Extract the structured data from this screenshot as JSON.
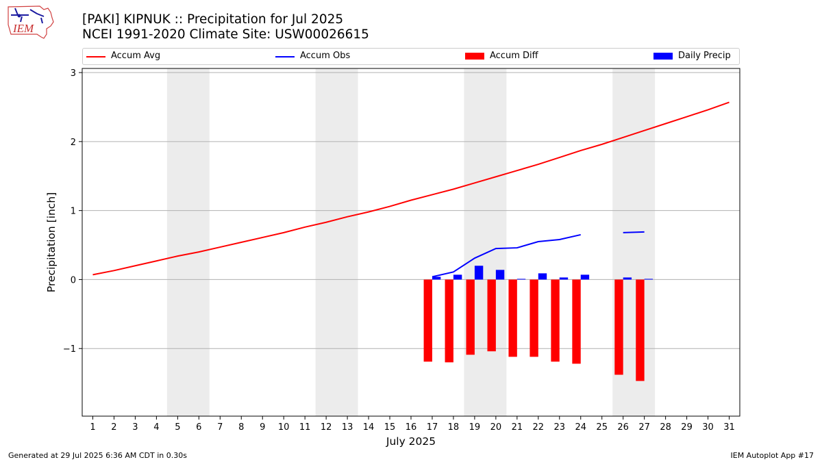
{
  "header": {
    "title_line1": "[PAKI] KIPNUK :: Precipitation for Jul 2025",
    "title_line2": "NCEI 1991-2020 Climate Site: USW00026615",
    "logo_text": "IEM"
  },
  "legend": [
    {
      "label": "Accum Avg",
      "color": "#ff0000",
      "kind": "line"
    },
    {
      "label": "Accum Obs",
      "color": "#0000ff",
      "kind": "line"
    },
    {
      "label": "Accum Diff",
      "color": "#ff0000",
      "kind": "box"
    },
    {
      "label": "Daily Precip",
      "color": "#0000ff",
      "kind": "box"
    }
  ],
  "footer": {
    "left": "Generated at 29 Jul 2025 6:36 AM CDT in 0.30s",
    "right": "IEM Autoplot App #17"
  },
  "chart_data": {
    "type": "bar",
    "xlabel": "July 2025",
    "ylabel": "Precipitation [inch]",
    "xlim": [
      0.5,
      31.5
    ],
    "ylim": [
      -1.98,
      3.06
    ],
    "x_ticks": [
      1,
      2,
      3,
      4,
      5,
      6,
      7,
      8,
      9,
      10,
      11,
      12,
      13,
      14,
      15,
      16,
      17,
      18,
      19,
      20,
      21,
      22,
      23,
      24,
      25,
      26,
      27,
      28,
      29,
      30,
      31
    ],
    "y_ticks": [
      -1,
      0,
      1,
      2,
      3
    ],
    "y_tick_labels": [
      "−1",
      "0",
      "1",
      "2",
      "3"
    ],
    "grid": "horizontal",
    "legend_position": "top",
    "weekend_shading": [
      [
        4.5,
        6.5
      ],
      [
        11.5,
        13.5
      ],
      [
        18.5,
        20.5
      ],
      [
        25.5,
        27.5
      ]
    ],
    "shading_color": "#ececec",
    "series": [
      {
        "name": "Accum Avg",
        "kind": "line",
        "color": "#ff0000",
        "x": [
          1,
          2,
          3,
          4,
          5,
          6,
          7,
          8,
          9,
          10,
          11,
          12,
          13,
          14,
          15,
          16,
          17,
          18,
          19,
          20,
          21,
          22,
          23,
          24,
          25,
          26,
          27,
          28,
          29,
          30,
          31
        ],
        "values": [
          0.07,
          0.13,
          0.2,
          0.27,
          0.34,
          0.4,
          0.47,
          0.54,
          0.61,
          0.68,
          0.76,
          0.83,
          0.91,
          0.98,
          1.06,
          1.15,
          1.23,
          1.31,
          1.4,
          1.49,
          1.58,
          1.67,
          1.77,
          1.87,
          1.96,
          2.06,
          2.16,
          2.26,
          2.36,
          2.46,
          2.57
        ]
      },
      {
        "name": "Accum Obs",
        "kind": "line",
        "color": "#0000ff",
        "segments": [
          {
            "x": [
              17,
              18,
              19,
              20,
              21,
              22,
              23,
              24
            ],
            "values": [
              0.04,
              0.11,
              0.31,
              0.45,
              0.46,
              0.55,
              0.58,
              0.65
            ]
          },
          {
            "x": [
              26,
              27
            ],
            "values": [
              0.68,
              0.69
            ]
          }
        ]
      },
      {
        "name": "Accum Diff",
        "kind": "bar",
        "color": "#ff0000",
        "offset": -0.2,
        "x": [
          17,
          18,
          19,
          20,
          21,
          22,
          23,
          24,
          26,
          27
        ],
        "values": [
          -1.19,
          -1.2,
          -1.09,
          -1.04,
          -1.12,
          -1.12,
          -1.19,
          -1.22,
          -1.38,
          -1.47
        ]
      },
      {
        "name": "Daily Precip",
        "kind": "bar",
        "color": "#0000ff",
        "offset": 0.2,
        "x": [
          17,
          18,
          19,
          20,
          21,
          22,
          23,
          24,
          26,
          27
        ],
        "values": [
          0.04,
          0.07,
          0.2,
          0.14,
          0.01,
          0.09,
          0.03,
          0.07,
          0.03,
          0.01
        ]
      }
    ]
  }
}
